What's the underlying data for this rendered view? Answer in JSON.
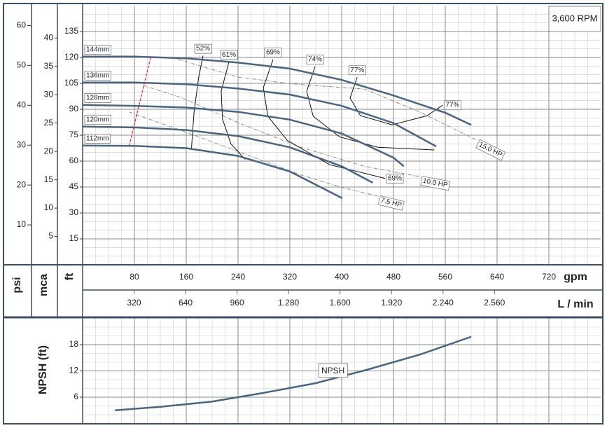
{
  "chart_data": {
    "type": "line",
    "rpm_label": "3,600 RPM",
    "x_label": "gpm",
    "x2_label": "L / min",
    "y_label": "ft",
    "mca_label": "mca",
    "psi_label": "psi",
    "xlim": [
      0,
      800
    ],
    "xticks": [
      80,
      160,
      240,
      320,
      400,
      480,
      560,
      640,
      720
    ],
    "x2lim": [
      0,
      3220
    ],
    "x2ticks": [
      320,
      640,
      960,
      {
        "value": 1280,
        "label": "1.280"
      },
      {
        "value": 1600,
        "label": "1.600"
      },
      {
        "value": 1920,
        "label": "1.920"
      },
      {
        "value": 2240,
        "label": "2.240"
      },
      {
        "value": 2560,
        "label": "2.560"
      }
    ],
    "ylim": [
      0,
      150
    ],
    "yticks": [
      15,
      30,
      45,
      60,
      75,
      90,
      105,
      120,
      135
    ],
    "mca_lim": [
      0,
      45.72
    ],
    "mca_ticks": [
      5,
      10,
      15,
      20,
      25,
      30,
      35,
      40
    ],
    "psi_lim": [
      0,
      65
    ],
    "psi_ticks": [
      10,
      20,
      30,
      40,
      50,
      60
    ],
    "grid": true,
    "impellers": [
      {
        "name": "144mm",
        "color": "#4a6582",
        "x": [
          0,
          80,
          160,
          240,
          320,
          400,
          480,
          560,
          600
        ],
        "values": [
          120.5,
          120.5,
          119.5,
          117,
          113.5,
          107,
          98,
          88,
          81
        ]
      },
      {
        "name": "136mm",
        "color": "#4a6582",
        "x": [
          0,
          80,
          160,
          240,
          320,
          400,
          480,
          546
        ],
        "values": [
          105.5,
          105.5,
          104.5,
          102,
          98.5,
          92,
          82,
          68.5
        ]
      },
      {
        "name": "128mm",
        "color": "#4a6582",
        "x": [
          0,
          80,
          160,
          240,
          320,
          400,
          480,
          496
        ],
        "values": [
          92.5,
          92,
          91,
          88.5,
          84,
          76,
          62,
          57
        ]
      },
      {
        "name": "120mm",
        "color": "#4a6582",
        "x": [
          0,
          80,
          160,
          240,
          320,
          400,
          448
        ],
        "values": [
          80,
          79.5,
          78,
          74.5,
          68,
          57,
          47.5
        ]
      },
      {
        "name": "112mm",
        "color": "#4a6582",
        "x": [
          0,
          80,
          160,
          240,
          320,
          401
        ],
        "values": [
          69,
          68.8,
          67.5,
          63,
          54,
          38.5
        ]
      }
    ],
    "efficiency": [
      {
        "name": "52%",
        "x": [
          186,
          179,
          172,
          168
        ],
        "values": [
          121,
          108,
          88,
          67
        ],
        "label_at_end": false
      },
      {
        "name": "61%",
        "x": [
          226,
          214,
          216,
          229,
          251
        ],
        "values": [
          117.5,
          100.5,
          84.3,
          70,
          61
        ],
        "label_at_end": false
      },
      {
        "name": "69%",
        "x": [
          294,
          279,
          286,
          316,
          381,
          467
        ],
        "values": [
          118.8,
          102.5,
          86,
          72,
          58,
          50
        ],
        "label_at_end": true
      },
      {
        "name": "74%",
        "x": [
          359,
          346,
          356,
          397,
          456,
          543
        ],
        "values": [
          114.7,
          100.5,
          86,
          74,
          68,
          66.5
        ],
        "label_at_end": false
      },
      {
        "name": "77%",
        "x": [
          424,
          413,
          429,
          478,
          532,
          556
        ],
        "values": [
          108.6,
          96.5,
          86.3,
          81,
          86.3,
          92.4
        ],
        "label_at_end": true
      }
    ],
    "power": [
      {
        "name": "15.0 HP",
        "color": "#888888",
        "x": [
          137,
          240,
          326,
          435,
          521,
          608
        ],
        "values": [
          120,
          108.6,
          104.6,
          101.7,
          88.4,
          72.2
        ]
      },
      {
        "name": "10.0 HP",
        "color": "#888888",
        "x": [
          94,
          154,
          240,
          337,
          435,
          521
        ],
        "values": [
          103.8,
          96.5,
          82.3,
          68,
          57,
          51
        ]
      },
      {
        "name": "7.5 HP",
        "color": "#888888",
        "x": [
          72,
          164,
          251,
          337,
          402,
          456
        ],
        "values": [
          88.4,
          76.2,
          64,
          52,
          44.6,
          39.7
        ]
      }
    ],
    "limit_line": {
      "color": "#e0202a",
      "x": [
        105,
        72
      ],
      "values": [
        120,
        69
      ]
    },
    "npsh": {
      "type": "line",
      "y_label": "NPSH (ft)",
      "name": "NPSH",
      "color": "#4a6582",
      "ylim": [
        0,
        24
      ],
      "yticks": [
        6,
        12,
        18
      ],
      "x": [
        50,
        120,
        200,
        280,
        360,
        440,
        520,
        600
      ],
      "values": [
        3,
        3.8,
        5,
        7,
        9.2,
        12.3,
        15.7,
        19.8
      ]
    }
  }
}
